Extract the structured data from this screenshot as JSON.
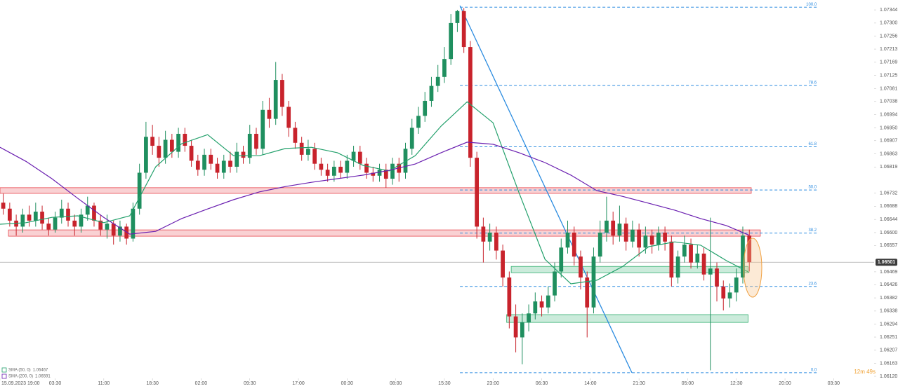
{
  "chart_data": {
    "type": "candlestick",
    "x": [
      0.5,
      1.5,
      2.5,
      3.5,
      4.5,
      5.5,
      6.5,
      7.5,
      8.5,
      9.5,
      10.5,
      11.5,
      12.5,
      13.5,
      14.5,
      15.5,
      16.5,
      17.5,
      18.5,
      19.5,
      20.5,
      21.5,
      22.5,
      23.5,
      24.5,
      25.5,
      26.5,
      27.5,
      28.5,
      29.5,
      30.5,
      31.5,
      32.5,
      33.5,
      34.5,
      35.5,
      36.5,
      37.5,
      38.5,
      39.5,
      40.5,
      41.5,
      42.5,
      43.5,
      44.5,
      45.5,
      46.5,
      47.5,
      48.5,
      49.5,
      50.5,
      51.5,
      52.5,
      53.5,
      54.5,
      55.5,
      56.5,
      57.5,
      58.5,
      59.5,
      60.5,
      61.5,
      62.5,
      63.5,
      64.5,
      65.5,
      66.5,
      67.5,
      68.5,
      69.5,
      70.5,
      71.5,
      72.5,
      73.5,
      74.5,
      75.5,
      76.5,
      77.5,
      78.5,
      79.5,
      80.5,
      81.5,
      82.5,
      83.5,
      84.5,
      85.5,
      86.5,
      87.5,
      88.5,
      89.5,
      90.5,
      91.5,
      92.5,
      93.5,
      94.5,
      95.5,
      96.5,
      97.5,
      98.5,
      99.5,
      100.5,
      101.5,
      102.5,
      103.5,
      104.5,
      105.5,
      106.5,
      107.5,
      108.5,
      109.5,
      110.5,
      111.5,
      112.5,
      113.5,
      114.5,
      115.5
    ],
    "open": [
      1.067,
      1.0668,
      1.0664,
      1.0662,
      1.0666,
      1.0664,
      1.0667,
      1.0663,
      1.0661,
      1.0665,
      1.0668,
      1.0664,
      1.0662,
      1.0666,
      1.0669,
      1.0664,
      1.0661,
      1.0663,
      1.0659,
      1.0662,
      1.0658,
      1.0668,
      1.068,
      1.0692,
      1.0689,
      1.0685,
      1.0691,
      1.0687,
      1.0693,
      1.0689,
      1.0684,
      1.0681,
      1.0686,
      1.0683,
      1.068,
      1.0684,
      1.0682,
      1.0687,
      1.0685,
      1.0693,
      1.0688,
      1.0701,
      1.0698,
      1.0711,
      1.0702,
      1.0695,
      1.069,
      1.0686,
      1.0688,
      1.0683,
      1.0681,
      1.0679,
      1.0682,
      1.068,
      1.0684,
      1.0687,
      1.0683,
      1.068,
      1.0679,
      1.0681,
      1.0678,
      1.0683,
      1.068,
      1.0688,
      1.0695,
      1.0699,
      1.0704,
      1.0709,
      1.0712,
      1.0718,
      1.073,
      1.0734,
      1.0722,
      1.0685,
      1.0662,
      1.0657,
      1.066,
      1.0654,
      1.0645,
      1.0632,
      1.0625,
      1.063,
      1.0633,
      1.0637,
      1.0635,
      1.0639,
      1.0647,
      1.0655,
      1.066,
      1.0652,
      1.0645,
      1.0635,
      1.0652,
      1.066,
      1.0664,
      1.0659,
      1.0663,
      1.0657,
      1.0661,
      1.0655,
      1.0659,
      1.0656,
      1.066,
      1.0657,
      1.0645,
      1.0652,
      1.0656,
      1.065,
      1.0653,
      1.0646,
      1.0648,
      1.0642,
      1.0638,
      1.064,
      1.0645,
      1.0659
    ],
    "high": [
      1.0673,
      1.067,
      1.0666,
      1.0668,
      1.0669,
      1.067,
      1.0669,
      1.0665,
      1.0667,
      1.0671,
      1.067,
      1.0666,
      1.0668,
      1.0672,
      1.067,
      1.0666,
      1.0666,
      1.0664,
      1.0664,
      1.0663,
      1.067,
      1.0683,
      1.0697,
      1.0696,
      1.0692,
      1.0694,
      1.0693,
      1.0695,
      1.0695,
      1.0691,
      1.0686,
      1.0688,
      1.0688,
      1.0685,
      1.0686,
      1.0687,
      1.069,
      1.0689,
      1.0696,
      1.0695,
      1.0704,
      1.0705,
      1.0717,
      1.0713,
      1.0704,
      1.0697,
      1.0692,
      1.0691,
      1.069,
      1.0685,
      1.0683,
      1.0684,
      1.0684,
      1.0686,
      1.0689,
      1.0689,
      1.0685,
      1.0682,
      1.0683,
      1.0683,
      1.0685,
      1.0685,
      1.069,
      1.0698,
      1.0702,
      1.0707,
      1.0712,
      1.0716,
      1.0722,
      1.0733,
      1.07344,
      1.0735,
      1.0724,
      1.0687,
      1.0665,
      1.0663,
      1.0662,
      1.0656,
      1.0647,
      1.0636,
      1.0633,
      1.0636,
      1.064,
      1.0639,
      1.0642,
      1.065,
      1.0658,
      1.0664,
      1.0662,
      1.0654,
      1.0647,
      1.0655,
      1.0664,
      1.0672,
      1.0667,
      1.0669,
      1.0665,
      1.0664,
      1.0663,
      1.0662,
      1.0661,
      1.0662,
      1.0662,
      1.0659,
      1.0654,
      1.0659,
      1.0658,
      1.0656,
      1.0655,
      1.0665,
      1.065,
      1.0644,
      1.0643,
      1.0648,
      1.0662,
      1.0661
    ],
    "low": [
      1.0666,
      1.0662,
      1.0659,
      1.066,
      1.0662,
      1.0662,
      1.0661,
      1.0659,
      1.066,
      1.0663,
      1.0662,
      1.0659,
      1.066,
      1.0664,
      1.0662,
      1.0659,
      1.0658,
      1.0656,
      1.0657,
      1.0656,
      1.0657,
      1.0666,
      1.0678,
      1.0686,
      1.0682,
      1.0683,
      1.0685,
      1.0685,
      1.0687,
      1.0682,
      1.0679,
      1.0679,
      1.0681,
      1.0678,
      1.0678,
      1.068,
      1.068,
      1.0683,
      1.0683,
      1.0686,
      1.0686,
      1.0695,
      1.0696,
      1.0699,
      1.0692,
      1.0688,
      1.0684,
      1.0684,
      1.0681,
      1.0679,
      1.0677,
      1.0677,
      1.0678,
      1.0678,
      1.0682,
      1.0681,
      1.0678,
      1.0677,
      1.0677,
      1.0675,
      1.0676,
      1.0677,
      1.0678,
      1.0686,
      1.0693,
      1.0697,
      1.0702,
      1.0707,
      1.071,
      1.0716,
      1.0727,
      1.072,
      1.0682,
      1.0658,
      1.065,
      1.0654,
      1.0651,
      1.0642,
      1.0628,
      1.062,
      1.0616,
      1.0627,
      1.0631,
      1.0632,
      1.0633,
      1.0637,
      1.0645,
      1.0653,
      1.0649,
      1.0641,
      1.0625,
      1.0633,
      1.065,
      1.0657,
      1.0656,
      1.0657,
      1.0654,
      1.0655,
      1.0652,
      1.0653,
      1.0653,
      1.0654,
      1.0654,
      1.0642,
      1.0643,
      1.065,
      1.0648,
      1.0648,
      1.0644,
      1.0614,
      1.0637,
      1.0634,
      1.0635,
      1.0637,
      1.0643,
      1.0647
    ],
    "close": [
      1.0668,
      1.0664,
      1.0662,
      1.0666,
      1.0664,
      1.0667,
      1.0663,
      1.0661,
      1.0665,
      1.0668,
      1.0664,
      1.0662,
      1.0666,
      1.0669,
      1.0664,
      1.0661,
      1.0663,
      1.0659,
      1.0662,
      1.0658,
      1.0668,
      1.068,
      1.0692,
      1.0689,
      1.0685,
      1.0691,
      1.0687,
      1.0693,
      1.0689,
      1.0684,
      1.0681,
      1.0686,
      1.0683,
      1.068,
      1.0684,
      1.0682,
      1.0687,
      1.0685,
      1.0693,
      1.0688,
      1.0701,
      1.0698,
      1.0711,
      1.0702,
      1.0695,
      1.069,
      1.0686,
      1.0688,
      1.0683,
      1.0681,
      1.0679,
      1.0682,
      1.068,
      1.0684,
      1.0687,
      1.0683,
      1.068,
      1.0679,
      1.0681,
      1.0678,
      1.0683,
      1.068,
      1.0688,
      1.0695,
      1.0699,
      1.0704,
      1.0709,
      1.0712,
      1.0718,
      1.073,
      1.0734,
      1.0722,
      1.0685,
      1.0662,
      1.0657,
      1.066,
      1.0654,
      1.0645,
      1.0632,
      1.0625,
      1.063,
      1.0633,
      1.0637,
      1.0635,
      1.0639,
      1.0647,
      1.0655,
      1.066,
      1.0652,
      1.0645,
      1.0635,
      1.0652,
      1.066,
      1.0664,
      1.0659,
      1.0663,
      1.0657,
      1.0661,
      1.0655,
      1.0659,
      1.0656,
      1.066,
      1.0657,
      1.0645,
      1.0652,
      1.0656,
      1.065,
      1.0653,
      1.0646,
      1.0648,
      1.0642,
      1.0638,
      1.064,
      1.0645,
      1.0659,
      1.06501
    ],
    "up_color": "#1f8f5f",
    "down_color": "#c8232c",
    "xlim": [
      0,
      134.74
    ],
    "xticks": [
      {
        "value": 0,
        "label": "15.09.2023  19:00"
      },
      {
        "value": 8.5,
        "label": "03:30"
      },
      {
        "value": 16,
        "label": "11:00"
      },
      {
        "value": 23.5,
        "label": "18:30"
      },
      {
        "value": 31,
        "label": "02:00"
      },
      {
        "value": 38.5,
        "label": "09:30"
      },
      {
        "value": 46,
        "label": "17:00"
      },
      {
        "value": 53.5,
        "label": "00:30"
      },
      {
        "value": 61,
        "label": "08:00"
      },
      {
        "value": 68.5,
        "label": "15:30"
      },
      {
        "value": 76,
        "label": "23:00"
      },
      {
        "value": 83.5,
        "label": "06:30"
      },
      {
        "value": 91,
        "label": "14:00"
      },
      {
        "value": 98.5,
        "label": "21:30"
      },
      {
        "value": 106,
        "label": "05:00"
      },
      {
        "value": 113.5,
        "label": "12:30"
      },
      {
        "value": 121,
        "label": "20:00"
      },
      {
        "value": 128.5,
        "label": "03:30"
      }
    ],
    "ylim": [
      1.06113,
      1.07377
    ],
    "yticks": [
      1.07344,
      {
        "value": 1.073,
        "label": "1.07300"
      },
      1.07256,
      1.07213,
      1.07169,
      1.07125,
      1.07081,
      1.07038,
      1.06994,
      {
        "value": 1.0695,
        "label": "1.06950"
      },
      1.06907,
      1.06863,
      1.06819,
      1.06732,
      1.06688,
      1.06644,
      {
        "value": 1.066,
        "label": "1.06600"
      },
      1.06557,
      1.06469,
      1.06426,
      1.06382,
      1.06338,
      1.06294,
      1.06251,
      1.06207,
      1.06163,
      {
        "value": 1.0612,
        "label": "1.06120"
      }
    ],
    "last_price": 1.06501,
    "overlays": [
      {
        "name": "SMA (50, 0)",
        "color": "#22a06b",
        "x": [
          0,
          4,
          8,
          12,
          16,
          20,
          24,
          28,
          32,
          36,
          40,
          44,
          48,
          52,
          56,
          60,
          64,
          68,
          72,
          76,
          80,
          84,
          88,
          92,
          96,
          100,
          104,
          108,
          112,
          115.5
        ],
        "values": [
          1.06628,
          1.06633,
          1.06651,
          1.06656,
          1.06633,
          1.06656,
          1.0682,
          1.06897,
          1.06927,
          1.06857,
          1.06857,
          1.06881,
          1.06885,
          1.06867,
          1.06824,
          1.06806,
          1.06857,
          1.06956,
          1.07037,
          1.06967,
          1.06733,
          1.06511,
          1.06429,
          1.06441,
          1.06487,
          1.06553,
          1.06569,
          1.06558,
          1.06506,
          1.06467
        ]
      },
      {
        "name": "SMA (200, 0)",
        "color": "#6a1fb0",
        "x": [
          0,
          4,
          8,
          12,
          16,
          20,
          24,
          28,
          32,
          36,
          40,
          44,
          48,
          52,
          56,
          60,
          64,
          68,
          72,
          76,
          80,
          84,
          88,
          92,
          96,
          100,
          104,
          108,
          112,
          115.5
        ],
        "values": [
          1.06885,
          1.06838,
          1.0678,
          1.06714,
          1.06651,
          1.06595,
          1.06604,
          1.06647,
          1.06679,
          1.0671,
          1.06736,
          1.06754,
          1.06768,
          1.0678,
          1.06792,
          1.06808,
          1.06829,
          1.06867,
          1.06902,
          1.06895,
          1.06867,
          1.06834,
          1.06792,
          1.0674,
          1.06721,
          1.06698,
          1.06675,
          1.06647,
          1.06623,
          1.06591
        ]
      }
    ],
    "fib": {
      "color": "#2a8be0",
      "low": 1.06132,
      "high": 1.07353,
      "x": [
        70.9,
        126.1
      ],
      "levels": [
        {
          "value": 100,
          "label": "100.0"
        },
        78.6,
        61.8,
        {
          "value": 50,
          "label": "50.0"
        },
        38.2,
        23.6,
        {
          "value": 0,
          "label": "0.0"
        }
      ]
    },
    "trendline": {
      "color": "#2a8be0",
      "x": [
        70.9,
        97.4
      ],
      "y": [
        1.07358,
        1.06132
      ]
    },
    "zones": [
      {
        "color": "#e8484f",
        "x": [
          0,
          115.8
        ],
        "y": [
          1.0675,
          1.06731
        ]
      },
      {
        "color": "#e8484f",
        "x": [
          1.3,
          117.2
        ],
        "y": [
          1.06609,
          1.06588
        ]
      },
      {
        "color": "#2fae6e",
        "x": [
          78.8,
          115.3
        ],
        "y": [
          1.06487,
          1.06466
        ]
      },
      {
        "color": "#2fae6e",
        "x": [
          78.1,
          115.3
        ],
        "y": [
          1.06326,
          1.063
        ]
      }
    ],
    "countdown": "12m 49s"
  }
}
